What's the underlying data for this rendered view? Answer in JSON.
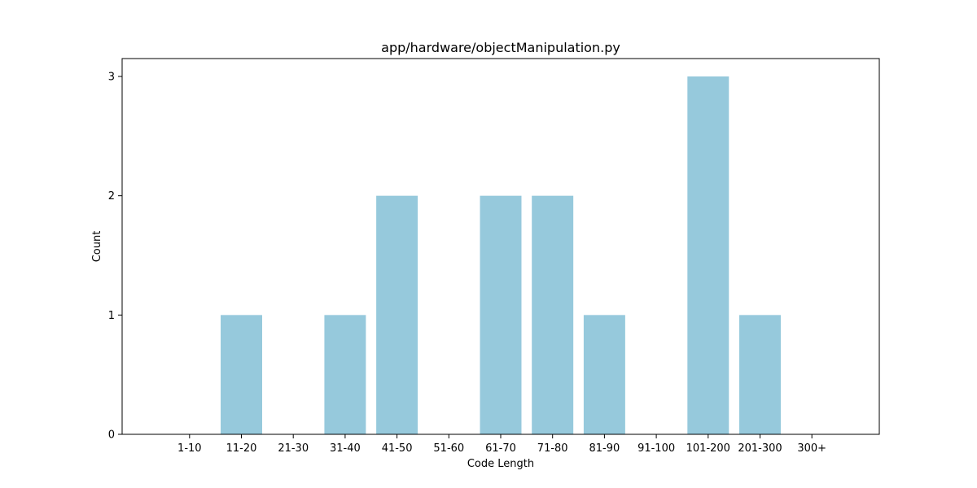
{
  "chart_data": {
    "type": "bar",
    "title": "app/hardware/objectManipulation.py",
    "xlabel": "Code Length",
    "ylabel": "Count",
    "categories": [
      "1-10",
      "11-20",
      "21-30",
      "31-40",
      "41-50",
      "51-60",
      "61-70",
      "71-80",
      "81-90",
      "91-100",
      "101-200",
      "201-300",
      "300+"
    ],
    "values": [
      0,
      1,
      0,
      1,
      2,
      0,
      2,
      2,
      1,
      0,
      3,
      1,
      0
    ],
    "yticks": [
      0,
      1,
      2,
      3
    ],
    "ylim": [
      0,
      3.15
    ],
    "grid": false,
    "bar_color": "#96c9dc"
  }
}
